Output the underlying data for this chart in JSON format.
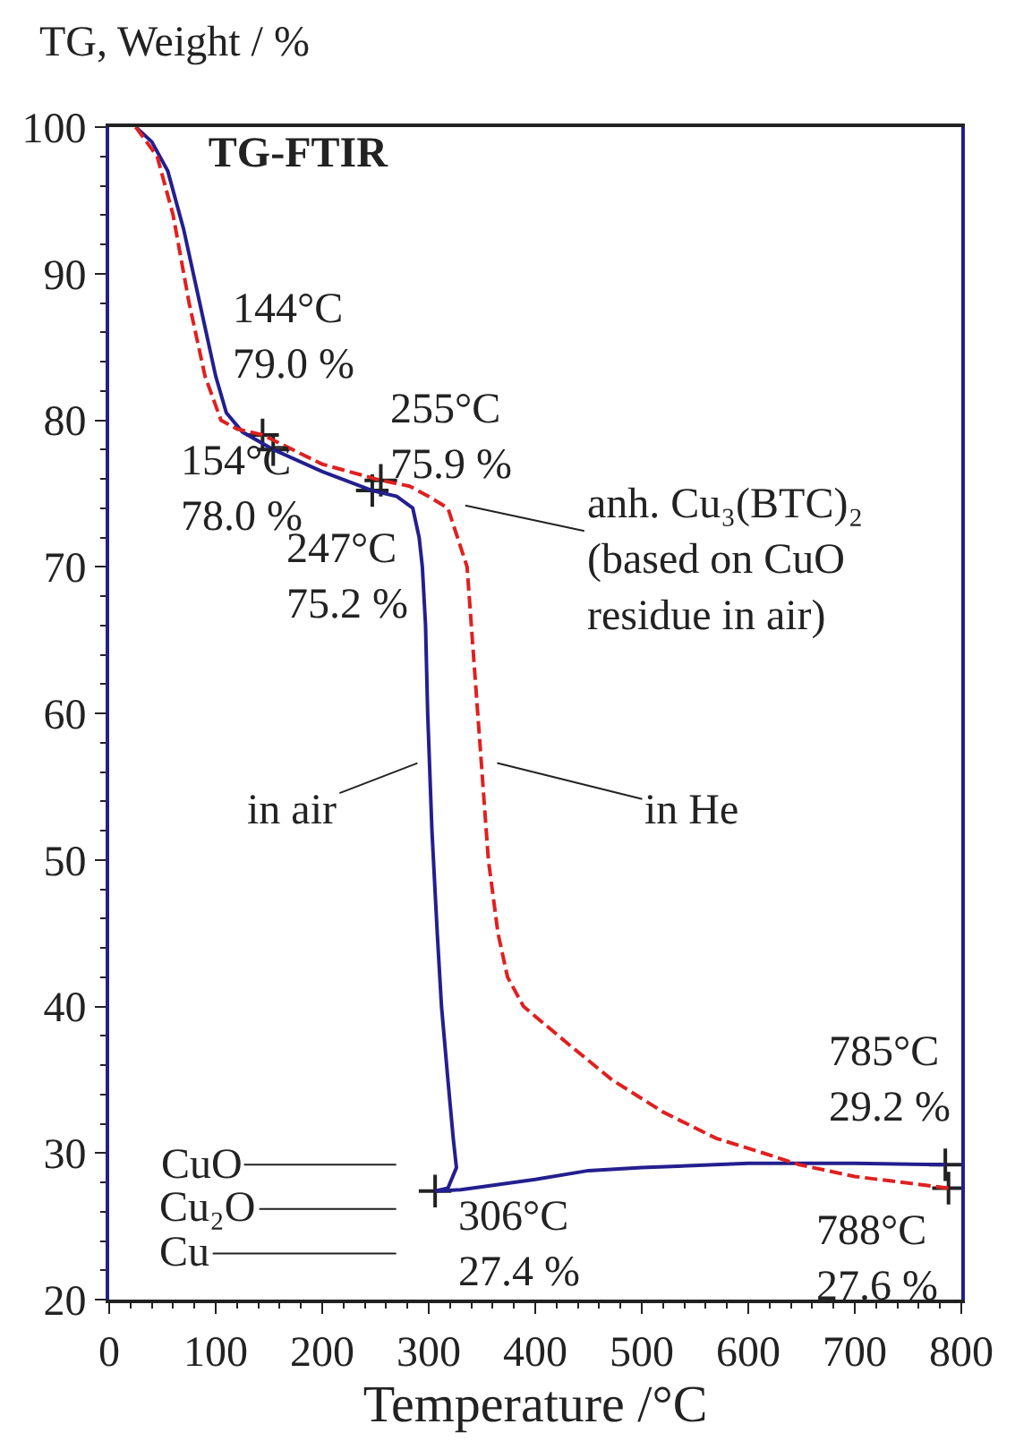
{
  "chart_data": {
    "type": "line",
    "title": "TG-FTIR",
    "xlabel": "Temperature /°C",
    "ylabel": "TG, Weight / %",
    "xlim": [
      0,
      800
    ],
    "ylim": [
      20,
      100
    ],
    "xticks": [
      0,
      100,
      200,
      300,
      400,
      500,
      600,
      700,
      800
    ],
    "yticks": [
      20,
      30,
      40,
      50,
      60,
      70,
      80,
      90,
      100
    ],
    "marker": "none",
    "series": [
      {
        "color": "#231f8f",
        "line_style": "solid",
        "x": [
          25,
          40,
          55,
          70,
          85,
          100,
          110,
          125,
          154,
          200,
          247,
          270,
          285,
          291,
          294,
          297,
          299,
          303,
          308,
          312,
          318,
          323,
          326,
          318,
          306,
          330,
          350,
          400,
          450,
          500,
          600,
          700,
          785
        ],
        "values": [
          100,
          99,
          97,
          93,
          88,
          83,
          80.5,
          79.2,
          78.0,
          76.5,
          75.2,
          74.8,
          74,
          72,
          70,
          66,
          60,
          52,
          45,
          40,
          35,
          31,
          29,
          27.6,
          27.4,
          27.5,
          27.7,
          28.2,
          28.8,
          29.0,
          29.3,
          29.3,
          29.2
        ]
      },
      {
        "color": "#e02020",
        "line_style": "dashed",
        "x": [
          25,
          45,
          60,
          75,
          90,
          105,
          120,
          144,
          200,
          255,
          282,
          300,
          318,
          336,
          346,
          356,
          365,
          374,
          389,
          430,
          472,
          520,
          570,
          614,
          648,
          700,
          788
        ],
        "values": [
          100,
          98,
          94,
          88,
          83,
          80,
          79.4,
          79.0,
          77,
          75.9,
          75.5,
          74.8,
          74,
          70,
          60,
          50,
          45,
          42,
          40,
          37.5,
          35,
          32.8,
          31,
          30,
          29.2,
          28.4,
          27.6
        ]
      }
    ],
    "annotations": [
      {
        "text": "144°C\n79.0 %",
        "x": 144,
        "y": 79.0
      },
      {
        "text": "154°C\n78.0 %",
        "x": 154,
        "y": 78.0
      },
      {
        "text": "255°C\n75.9 %",
        "x": 255,
        "y": 75.9
      },
      {
        "text": "247°C\n75.2 %",
        "x": 247,
        "y": 75.2
      },
      {
        "text": "306°C\n27.4 %",
        "x": 306,
        "y": 27.4
      },
      {
        "text": "785°C\n29.2 %",
        "x": 785,
        "y": 29.2
      },
      {
        "text": "788°C\n27.6 %",
        "x": 788,
        "y": 27.6
      },
      "anh. Cu₃(BTC)₂\n(based on CuO\nresidue in air)",
      "in air",
      "in He",
      "CuO",
      "Cu₂O",
      "Cu"
    ]
  }
}
